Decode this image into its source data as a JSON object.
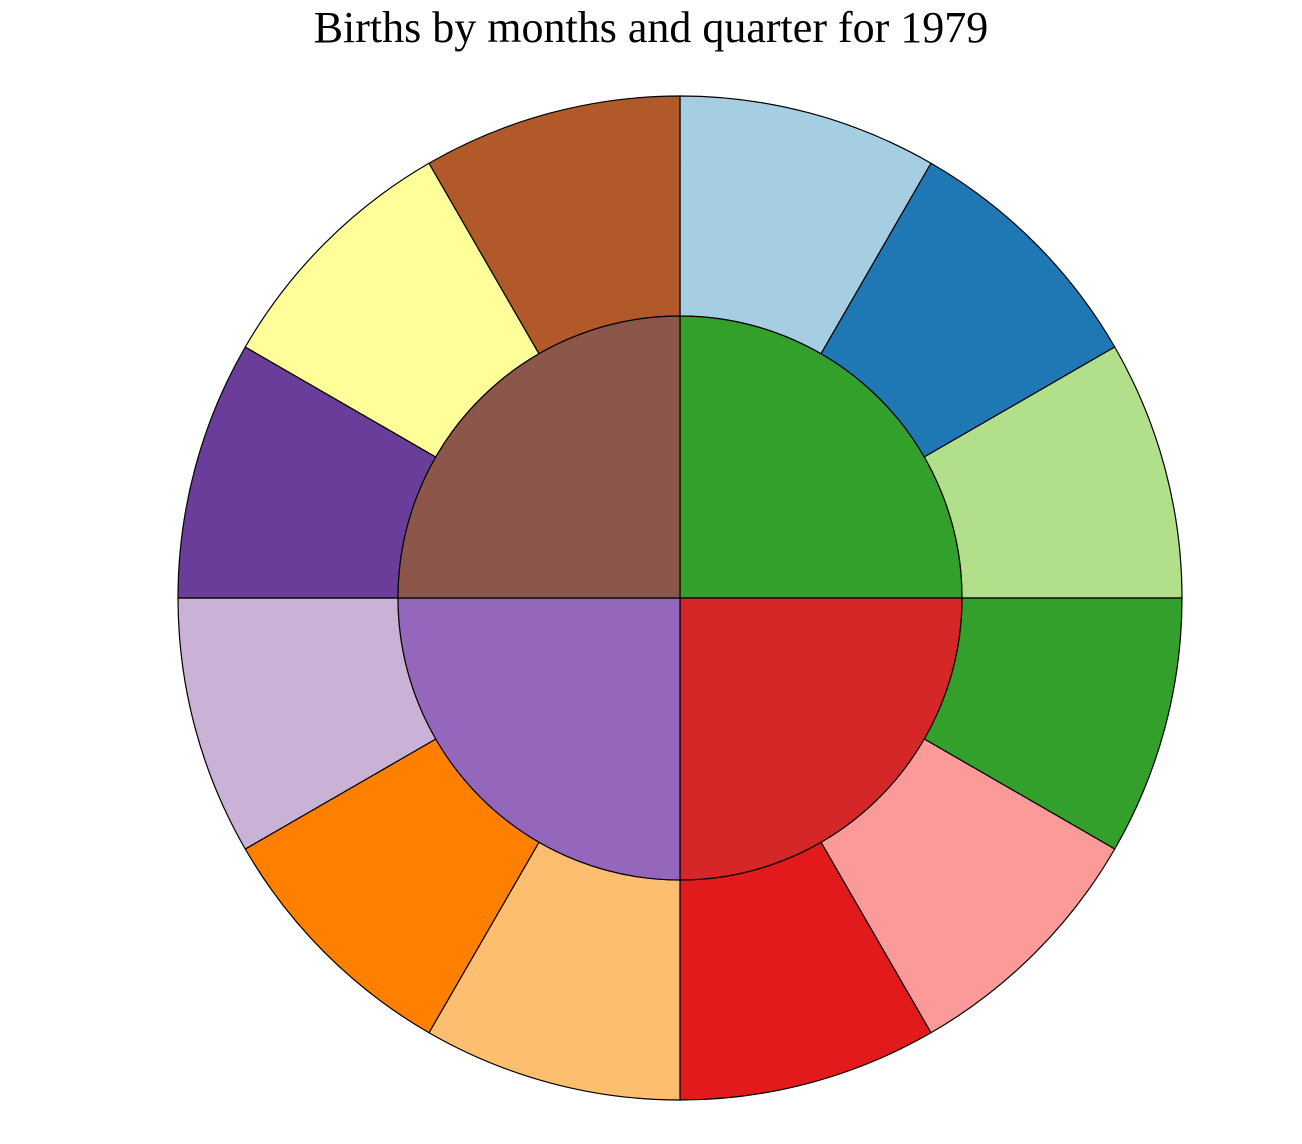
{
  "chart_data": {
    "type": "sunburst",
    "title": "Births by months and quarter for 1979",
    "inner_ring": {
      "series": [
        {
          "values": [
            7,
            7,
            7,
            7
          ],
          "colors": [
            "#33a02c",
            "#d62728",
            "#9467bd",
            "#8c564b"
          ]
        }
      ]
    },
    "outer_ring": {
      "series": [
        {
          "values": [
            1,
            1,
            1,
            1,
            1,
            1,
            1,
            1,
            1,
            1,
            1,
            1
          ],
          "colors": [
            "#a6cee3",
            "#1f78b4",
            "#b2df8a",
            "#33a02c",
            "#fb9a99",
            "#e31a1c",
            "#fdbf6f",
            "#ff7f00",
            "#cab2d6",
            "#6a3d9a",
            "#ffff99",
            "#b15928"
          ]
        }
      ]
    },
    "direction": "clockwise",
    "start": "top"
  }
}
